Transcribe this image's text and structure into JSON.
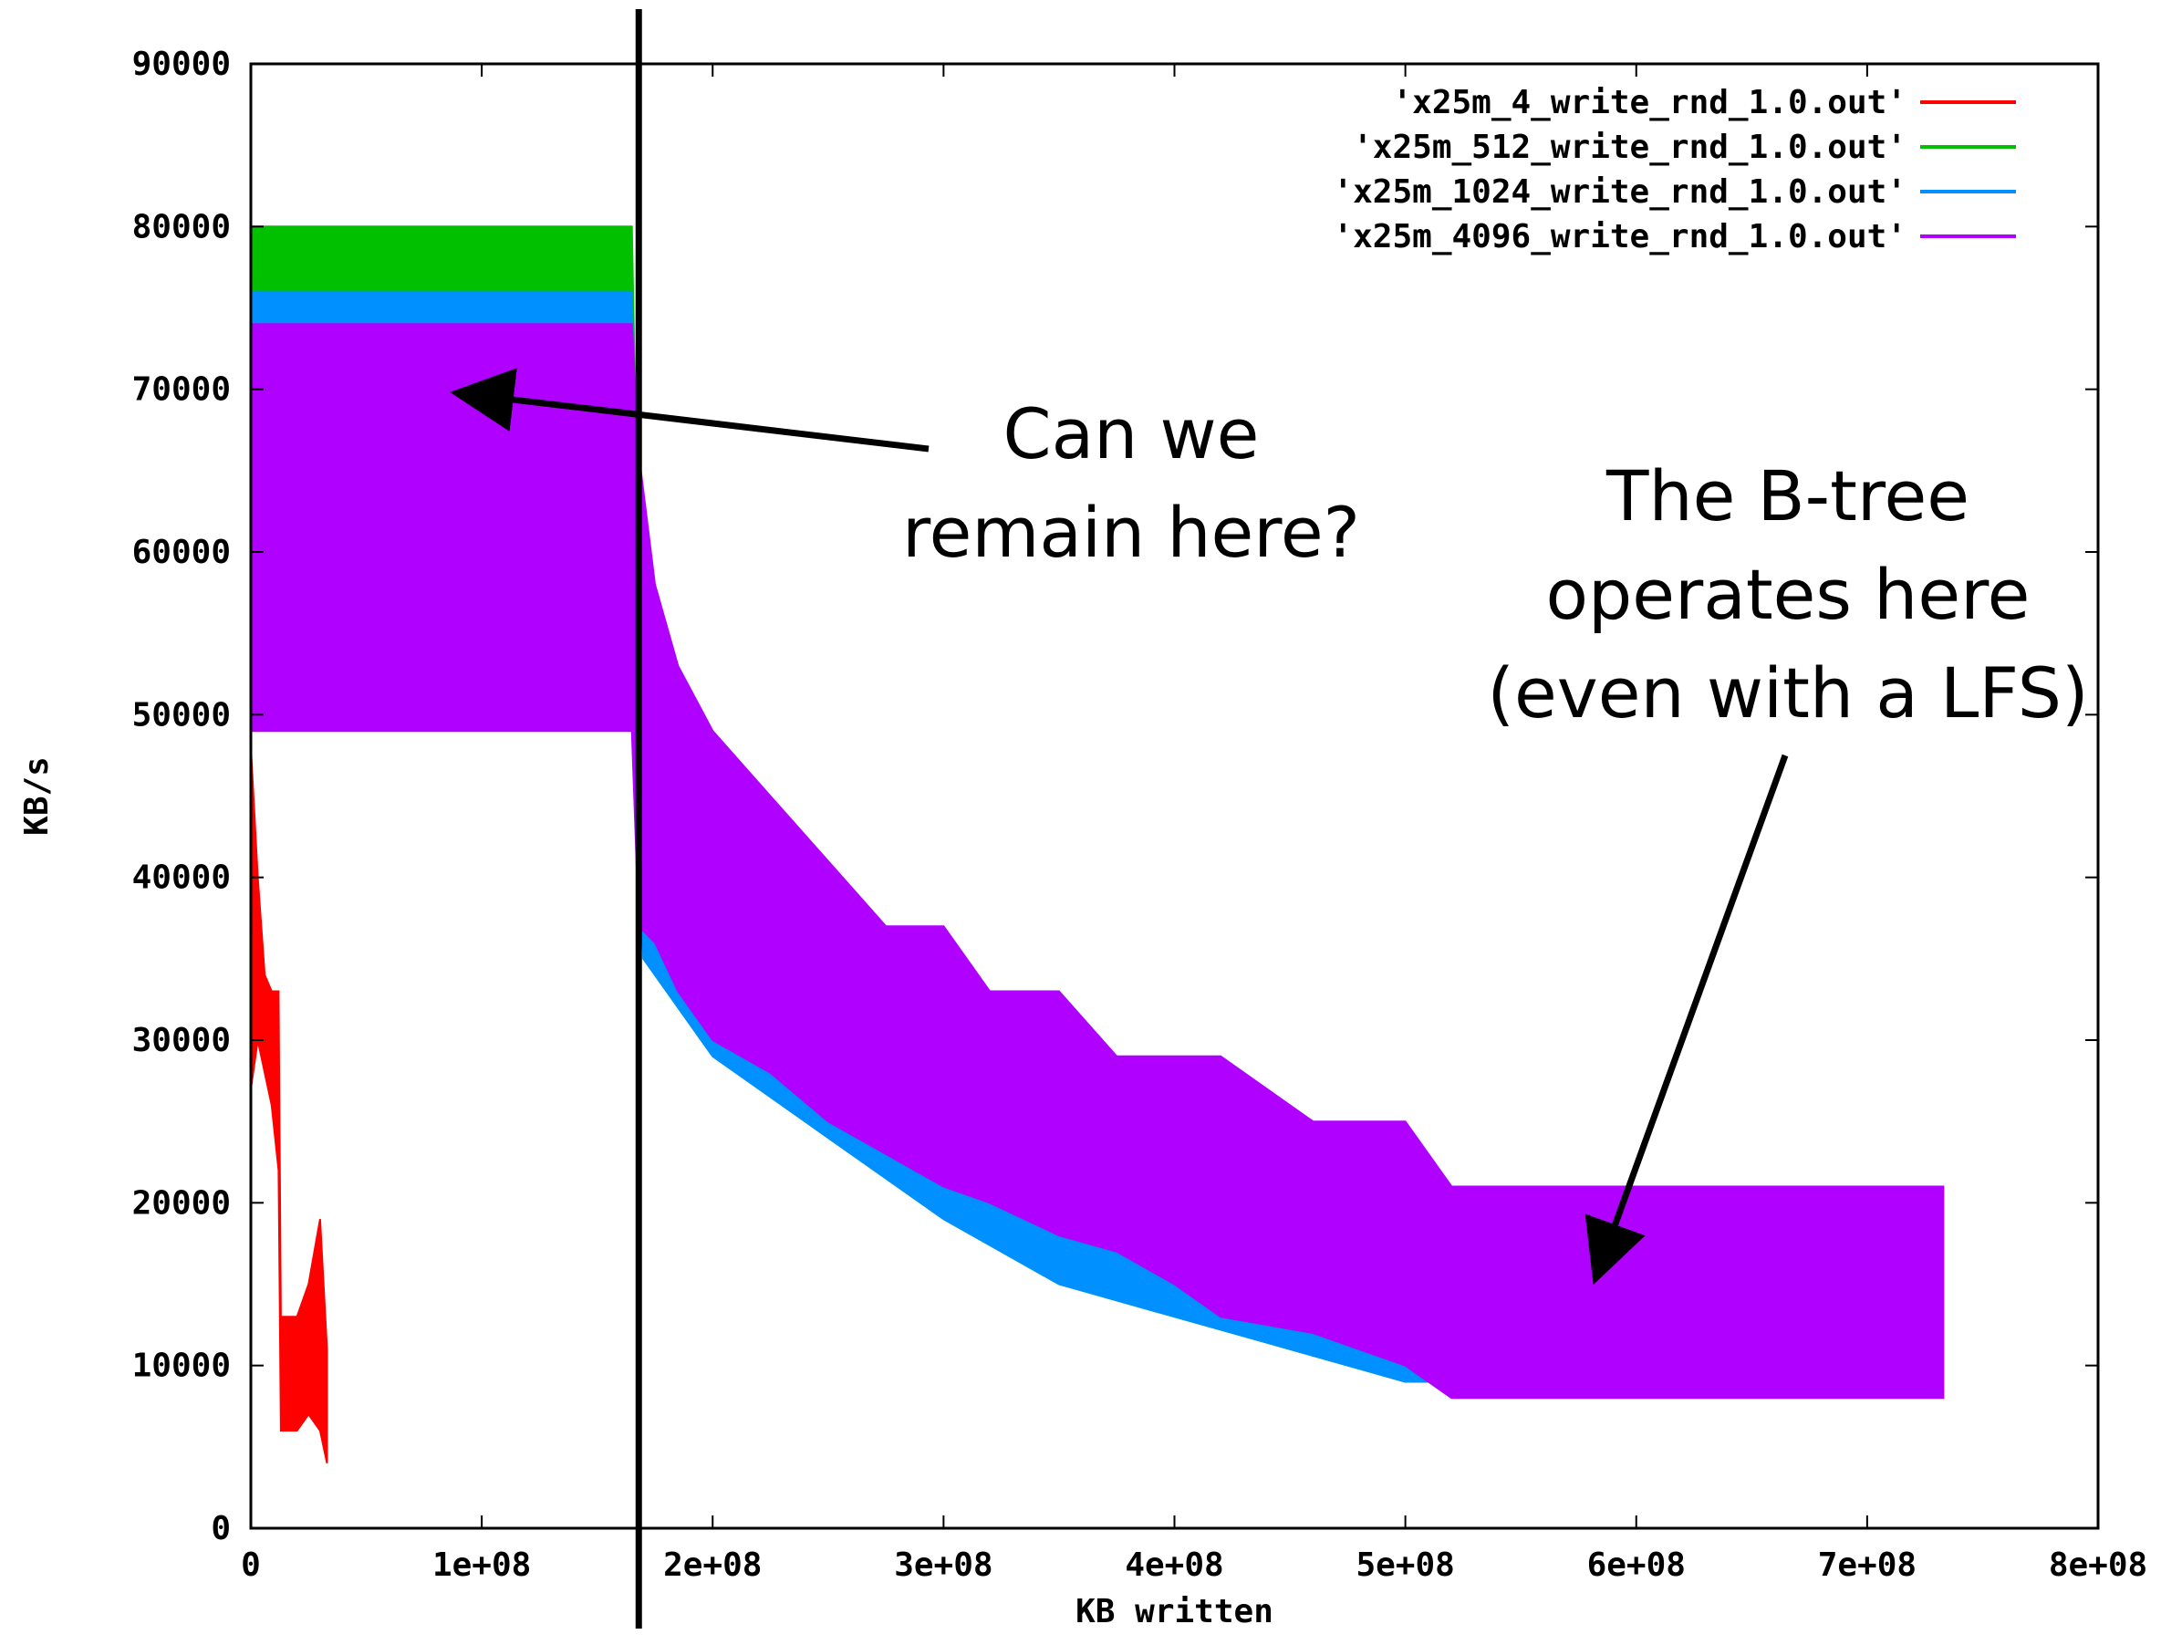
{
  "chart_data": {
    "type": "line",
    "title": "",
    "xlabel": "KB written",
    "ylabel": "KB/s",
    "xlim": [
      0,
      800000000
    ],
    "ylim": [
      0,
      90000
    ],
    "x_ticks": [
      {
        "value": 0,
        "label": "0"
      },
      {
        "value": 100000000,
        "label": "1e+08"
      },
      {
        "value": 200000000,
        "label": "2e+08"
      },
      {
        "value": 300000000,
        "label": "3e+08"
      },
      {
        "value": 400000000,
        "label": "4e+08"
      },
      {
        "value": 500000000,
        "label": "5e+08"
      },
      {
        "value": 600000000,
        "label": "6e+08"
      },
      {
        "value": 700000000,
        "label": "7e+08"
      },
      {
        "value": 800000000,
        "label": "8e+08"
      }
    ],
    "y_ticks": [
      {
        "value": 0,
        "label": "0"
      },
      {
        "value": 10000,
        "label": "10000"
      },
      {
        "value": 20000,
        "label": "20000"
      },
      {
        "value": 30000,
        "label": "30000"
      },
      {
        "value": 40000,
        "label": "40000"
      },
      {
        "value": 50000,
        "label": "50000"
      },
      {
        "value": 60000,
        "label": "60000"
      },
      {
        "value": 70000,
        "label": "70000"
      },
      {
        "value": 80000,
        "label": "80000"
      },
      {
        "value": 90000,
        "label": "90000"
      }
    ],
    "grid": false,
    "legend_position": "top-right",
    "series": [
      {
        "name": "'x25m_4_write_rnd_1.0.out'",
        "color": "#ff0000",
        "envelope": [
          {
            "x": 0,
            "low": 27000,
            "high": 48000
          },
          {
            "x": 3000000,
            "low": 30000,
            "high": 40000
          },
          {
            "x": 6000000,
            "low": 28000,
            "high": 34000
          },
          {
            "x": 9000000,
            "low": 26000,
            "high": 33000
          },
          {
            "x": 12000000,
            "low": 22000,
            "high": 33000
          },
          {
            "x": 13000000,
            "low": 6000,
            "high": 13000
          },
          {
            "x": 20000000,
            "low": 6000,
            "high": 13000
          },
          {
            "x": 25000000,
            "low": 7000,
            "high": 15000
          },
          {
            "x": 30000000,
            "low": 6000,
            "high": 19000
          },
          {
            "x": 33000000,
            "low": 4000,
            "high": 11000
          }
        ]
      },
      {
        "name": "'x25m_512_write_rnd_1.0.out'",
        "color": "#00c000",
        "envelope": [
          {
            "x": 0,
            "low": 53000,
            "high": 80000
          },
          {
            "x": 100000000,
            "low": 53000,
            "high": 80000
          },
          {
            "x": 165000000,
            "low": 53000,
            "high": 80000
          },
          {
            "x": 170000000,
            "low": 35000,
            "high": 42000
          },
          {
            "x": 200000000,
            "low": 29000,
            "high": 34000
          },
          {
            "x": 250000000,
            "low": 24000,
            "high": 28000
          },
          {
            "x": 300000000,
            "low": 19000,
            "high": 22000
          },
          {
            "x": 350000000,
            "low": 15000,
            "high": 19000
          },
          {
            "x": 400000000,
            "low": 13000,
            "high": 17000
          },
          {
            "x": 450000000,
            "low": 11000,
            "high": 15000
          },
          {
            "x": 500000000,
            "low": 9000,
            "high": 13000
          },
          {
            "x": 525000000,
            "low": 9000,
            "high": 12000
          }
        ]
      },
      {
        "name": "'x25m_1024_write_rnd_1.0.out'",
        "color": "#0090ff",
        "envelope": [
          {
            "x": 0,
            "low": 53000,
            "high": 76000
          },
          {
            "x": 100000000,
            "low": 53000,
            "high": 76000
          },
          {
            "x": 165000000,
            "low": 53000,
            "high": 76000
          },
          {
            "x": 170000000,
            "low": 35000,
            "high": 40000
          },
          {
            "x": 200000000,
            "low": 29000,
            "high": 33000
          },
          {
            "x": 250000000,
            "low": 24000,
            "high": 28000
          },
          {
            "x": 300000000,
            "low": 19000,
            "high": 22000
          },
          {
            "x": 350000000,
            "low": 15000,
            "high": 20000
          },
          {
            "x": 400000000,
            "low": 13000,
            "high": 17000
          },
          {
            "x": 450000000,
            "low": 11000,
            "high": 15000
          },
          {
            "x": 500000000,
            "low": 9000,
            "high": 14000
          },
          {
            "x": 525000000,
            "low": 9000,
            "high": 13000
          }
        ]
      },
      {
        "name": "'x25m_4096_write_rnd_1.0.out'",
        "color": "#b000ff",
        "envelope": [
          {
            "x": 0,
            "low": 49000,
            "high": 74000
          },
          {
            "x": 165000000,
            "low": 49000,
            "high": 74000
          },
          {
            "x": 168000000,
            "low": 37000,
            "high": 66000
          },
          {
            "x": 175000000,
            "low": 36000,
            "high": 58000
          },
          {
            "x": 185000000,
            "low": 33000,
            "high": 53000
          },
          {
            "x": 200000000,
            "low": 30000,
            "high": 49000
          },
          {
            "x": 225000000,
            "low": 28000,
            "high": 45000
          },
          {
            "x": 250000000,
            "low": 25000,
            "high": 41000
          },
          {
            "x": 275000000,
            "low": 23000,
            "high": 37000
          },
          {
            "x": 300000000,
            "low": 21000,
            "high": 37000
          },
          {
            "x": 320000000,
            "low": 20000,
            "high": 33000
          },
          {
            "x": 350000000,
            "low": 18000,
            "high": 33000
          },
          {
            "x": 375000000,
            "low": 17000,
            "high": 29000
          },
          {
            "x": 400000000,
            "low": 15000,
            "high": 29000
          },
          {
            "x": 420000000,
            "low": 13000,
            "high": 29000
          },
          {
            "x": 460000000,
            "low": 12000,
            "high": 25000
          },
          {
            "x": 500000000,
            "low": 10000,
            "high": 25000
          },
          {
            "x": 520000000,
            "low": 8000,
            "high": 21000
          },
          {
            "x": 600000000,
            "low": 8000,
            "high": 21000
          },
          {
            "x": 700000000,
            "low": 8000,
            "high": 21000
          },
          {
            "x": 733000000,
            "low": 8000,
            "high": 21000
          }
        ]
      }
    ],
    "annotations": [
      {
        "text": [
          "Can we",
          "remain here?"
        ],
        "points_to": {
          "x": 85000000,
          "y": 70000
        }
      },
      {
        "text": [
          "The B-tree",
          "operates here",
          "(even with a LFS)"
        ],
        "points_to": {
          "x": 580000000,
          "y": 15000
        }
      }
    ],
    "marker_line": {
      "x": 168000000
    }
  }
}
